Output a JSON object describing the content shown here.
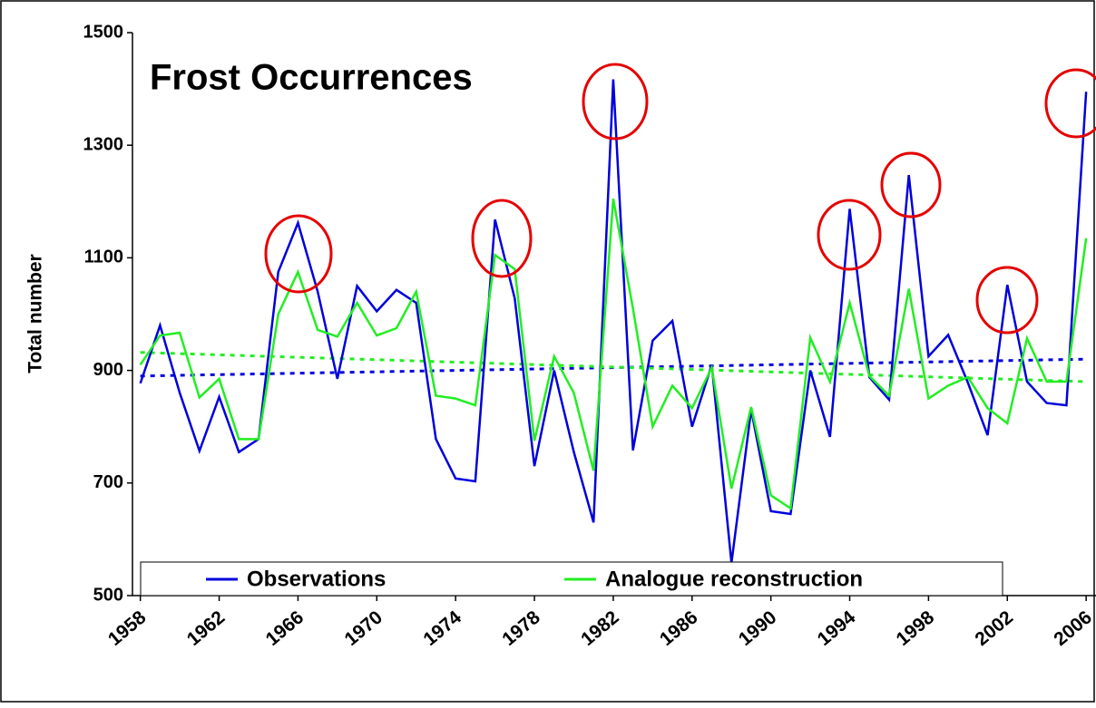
{
  "chart_data": {
    "type": "line",
    "title": "Frost Occurrences",
    "ylabel": "Total number",
    "x": [
      1958,
      1959,
      1960,
      1961,
      1962,
      1963,
      1964,
      1965,
      1966,
      1967,
      1968,
      1969,
      1970,
      1971,
      1972,
      1973,
      1974,
      1975,
      1976,
      1977,
      1978,
      1979,
      1980,
      1981,
      1982,
      1983,
      1984,
      1985,
      1986,
      1987,
      1988,
      1989,
      1990,
      1991,
      1992,
      1993,
      1994,
      1995,
      1996,
      1997,
      1998,
      1999,
      2000,
      2001,
      2002,
      2003,
      2004,
      2005,
      2006
    ],
    "series": [
      {
        "name": "Observations",
        "color": "#0000dd",
        "values": [
          877,
          980,
          860,
          757,
          853,
          755,
          778,
          1075,
          1162,
          1040,
          885,
          1050,
          1005,
          1043,
          1020,
          778,
          708,
          703,
          1168,
          1028,
          730,
          900,
          755,
          630,
          1417,
          758,
          953,
          988,
          800,
          910,
          558,
          830,
          650,
          645,
          900,
          782,
          1187,
          888,
          848,
          1247,
          925,
          963,
          878,
          785,
          1052,
          880,
          842,
          838,
          1395
        ]
      },
      {
        "name": "Analogue reconstruction",
        "color": "#22ee22",
        "values": [
          910,
          962,
          967,
          852,
          885,
          778,
          778,
          1000,
          1075,
          972,
          960,
          1020,
          962,
          975,
          1040,
          855,
          850,
          838,
          1105,
          1080,
          775,
          925,
          860,
          722,
          1205,
          1010,
          800,
          873,
          833,
          905,
          690,
          835,
          678,
          655,
          958,
          880,
          1020,
          890,
          855,
          1045,
          850,
          873,
          888,
          833,
          806,
          957,
          880,
          880,
          1135
        ]
      }
    ],
    "trendlines": [
      {
        "color": "#0000dd",
        "x": [
          1958,
          2006
        ],
        "values": [
          890,
          920
        ]
      },
      {
        "color": "#22ee22",
        "x": [
          1958,
          2006
        ],
        "values": [
          932,
          880
        ]
      }
    ],
    "xlim": [
      1957.6,
      2006.5
    ],
    "xticks": [
      1958,
      1962,
      1966,
      1970,
      1974,
      1978,
      1982,
      1986,
      1990,
      1994,
      1998,
      2002,
      2006
    ],
    "ylim": [
      500,
      1500
    ],
    "yticks": [
      500,
      700,
      900,
      1100,
      1300,
      1500
    ],
    "grid": false
  }
}
